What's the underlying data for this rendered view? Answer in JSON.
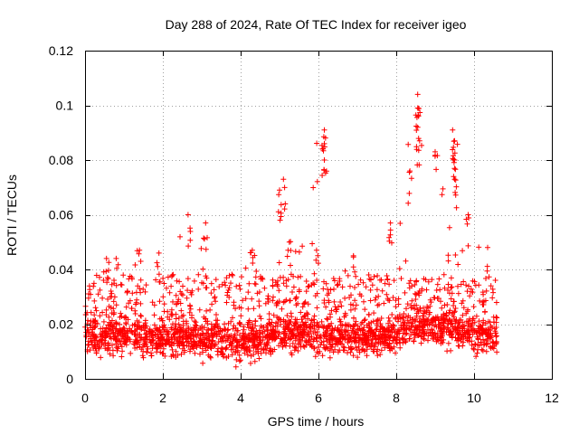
{
  "chart_data": {
    "type": "scatter",
    "title": "Day 288 of 2024, Rate Of TEC Index for receiver igeo",
    "xlabel": "GPS time / hours",
    "ylabel": "ROTI / TECUs",
    "xlim": [
      0,
      12
    ],
    "ylim": [
      0,
      0.12
    ],
    "grid": true,
    "marker": "+",
    "color": "#ff0000",
    "x_ticks": [
      0,
      2,
      4,
      6,
      8,
      10,
      12
    ],
    "x_tick_labels": [
      "0",
      "2",
      "4",
      "6",
      "8",
      "10",
      "12"
    ],
    "y_ticks": [
      0,
      0.02,
      0.04,
      0.06,
      0.08,
      0.1,
      0.12
    ],
    "y_tick_labels": [
      "0",
      "0.02",
      "0.04",
      "0.06",
      "0.08",
      "0.1",
      "0.12"
    ],
    "x_data_range": [
      0,
      10.6
    ],
    "series": [
      {
        "name": "ROTI",
        "envelope": {
          "x": [
            0,
            0.5,
            1.0,
            1.5,
            2.0,
            2.5,
            3.0,
            3.5,
            4.0,
            4.5,
            5.0,
            5.5,
            6.0,
            6.5,
            7.0,
            7.5,
            8.0,
            8.5,
            9.0,
            9.5,
            10.0,
            10.6
          ],
          "base": [
            0.015,
            0.016,
            0.016,
            0.015,
            0.014,
            0.015,
            0.014,
            0.014,
            0.013,
            0.014,
            0.016,
            0.016,
            0.015,
            0.015,
            0.015,
            0.015,
            0.016,
            0.019,
            0.019,
            0.018,
            0.017,
            0.015
          ],
          "peak": [
            0.03,
            0.044,
            0.043,
            0.046,
            0.046,
            0.055,
            0.057,
            0.035,
            0.047,
            0.043,
            0.073,
            0.05,
            0.091,
            0.048,
            0.045,
            0.04,
            0.057,
            0.104,
            0.083,
            0.091,
            0.06,
            0.048
          ]
        },
        "peaks": [
          {
            "x": 0.55,
            "y": 0.044
          },
          {
            "x": 0.8,
            "y": 0.044
          },
          {
            "x": 1.4,
            "y": 0.047
          },
          {
            "x": 1.9,
            "y": 0.046
          },
          {
            "x": 2.65,
            "y": 0.06
          },
          {
            "x": 3.1,
            "y": 0.057
          },
          {
            "x": 4.3,
            "y": 0.047
          },
          {
            "x": 5.0,
            "y": 0.069
          },
          {
            "x": 5.1,
            "y": 0.073
          },
          {
            "x": 5.25,
            "y": 0.05
          },
          {
            "x": 5.95,
            "y": 0.047
          },
          {
            "x": 6.15,
            "y": 0.091
          },
          {
            "x": 6.15,
            "y": 0.086
          },
          {
            "x": 6.15,
            "y": 0.08
          },
          {
            "x": 6.9,
            "y": 0.045
          },
          {
            "x": 7.85,
            "y": 0.057
          },
          {
            "x": 8.35,
            "y": 0.076
          },
          {
            "x": 8.55,
            "y": 0.104
          },
          {
            "x": 8.55,
            "y": 0.099
          },
          {
            "x": 8.55,
            "y": 0.092
          },
          {
            "x": 8.6,
            "y": 0.087
          },
          {
            "x": 9.0,
            "y": 0.083
          },
          {
            "x": 9.45,
            "y": 0.091
          },
          {
            "x": 9.5,
            "y": 0.087
          },
          {
            "x": 9.5,
            "y": 0.08
          },
          {
            "x": 9.5,
            "y": 0.073
          },
          {
            "x": 9.85,
            "y": 0.06
          },
          {
            "x": 10.35,
            "y": 0.048
          }
        ]
      }
    ]
  }
}
